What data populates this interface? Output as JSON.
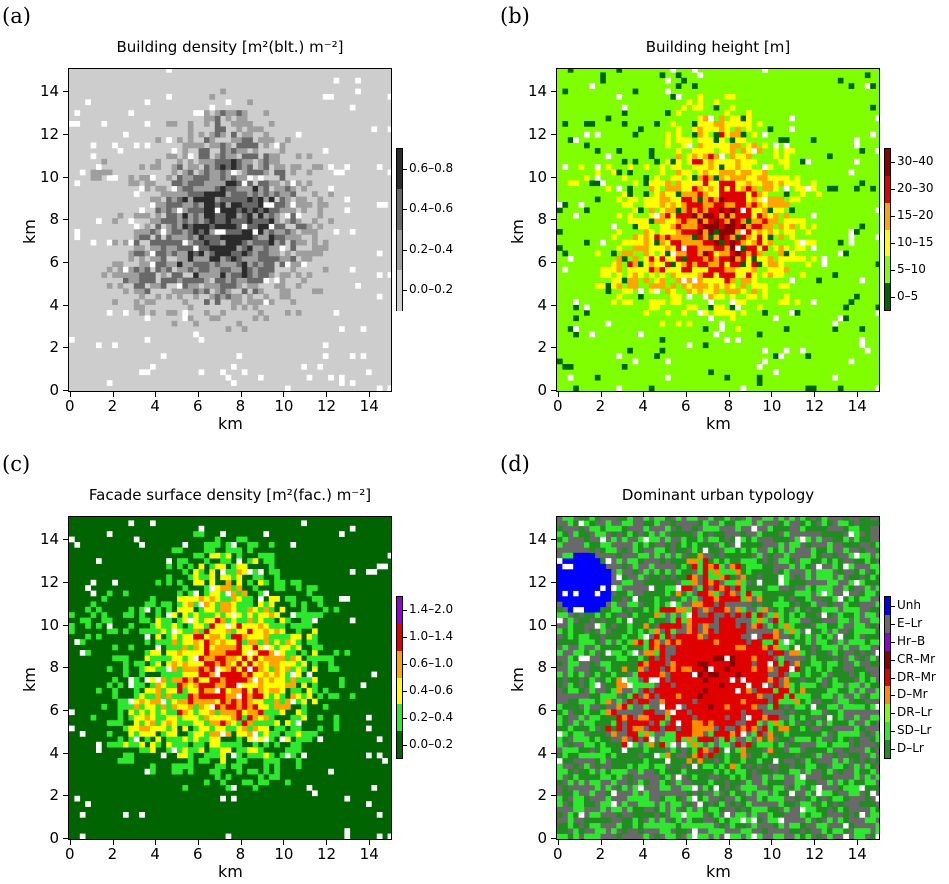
{
  "x_ticks": [
    "0",
    "2",
    "4",
    "6",
    "8",
    "10",
    "12",
    "14"
  ],
  "y_ticks": [
    "0",
    "2",
    "4",
    "6",
    "8",
    "10",
    "12",
    "14"
  ],
  "xlabel": "km",
  "ylabel": "km",
  "panels": {
    "a": {
      "letter": "(a)",
      "title": "Building density [m²(blt.) m⁻²]",
      "legend": [
        "0.6–0.8",
        "0.4–0.6",
        "0.2–0.4",
        "0.0–0.2"
      ],
      "colors": [
        "#2b2b2b",
        "#686868",
        "#9e9e9e",
        "#cdcdcd"
      ],
      "background": "#cdcdcd"
    },
    "b": {
      "letter": "(b)",
      "title": "Building height [m]",
      "legend": [
        "30–40",
        "20–30",
        "15–20",
        "10–15",
        "5–10",
        "0–5"
      ],
      "colors": [
        "#8b0000",
        "#e00000",
        "#ffa500",
        "#ffff00",
        "#7fff00",
        "#006400"
      ],
      "background": "#7fff00"
    },
    "c": {
      "letter": "(c)",
      "title": "Facade surface density [m²(fac.) m⁻²]",
      "legend": [
        "1.4–2.0",
        "1.0–1.4",
        "0.6–1.0",
        "0.4–0.6",
        "0.2–0.4",
        "0.0–0.2"
      ],
      "colors": [
        "#9400d3",
        "#e00000",
        "#ffa500",
        "#ffff00",
        "#2ee82e",
        "#006400"
      ],
      "background": "#006400"
    },
    "d": {
      "letter": "(d)",
      "title": "Dominant urban typology",
      "legend": [
        "Unh",
        "E–Lr",
        "Hr–B",
        "CR–Mr",
        "DR–Mr",
        "D–Mr",
        "DR–Lr",
        "SD–Lr",
        "D–Lr"
      ],
      "colors": [
        "#0000ff",
        "#696969",
        "#9400d3",
        "#8b0000",
        "#e00000",
        "#ff8c00",
        "#7fff00",
        "#2ee82e",
        "#228b22"
      ],
      "background": "#696969"
    }
  },
  "chart_data": [
    {
      "type": "heatmap",
      "title": "Building density [m²(blt.) m⁻²]",
      "xlabel": "km",
      "ylabel": "km",
      "xlim": [
        0,
        15
      ],
      "ylim": [
        0,
        15
      ],
      "categories": [
        "0.0–0.2",
        "0.2–0.4",
        "0.4–0.6",
        "0.6–0.8"
      ],
      "colorbar": "right",
      "highest_values_center_km": [
        7.5,
        7.5
      ]
    },
    {
      "type": "heatmap",
      "title": "Building height [m]",
      "xlabel": "km",
      "ylabel": "km",
      "xlim": [
        0,
        15
      ],
      "ylim": [
        0,
        15
      ],
      "categories": [
        "0–5",
        "5–10",
        "10–15",
        "15–20",
        "20–30",
        "30–40"
      ],
      "colorbar": "right"
    },
    {
      "type": "heatmap",
      "title": "Facade surface density [m²(fac.) m⁻²]",
      "xlabel": "km",
      "ylabel": "km",
      "xlim": [
        0,
        15
      ],
      "ylim": [
        0,
        15
      ],
      "categories": [
        "0.0–0.2",
        "0.2–0.4",
        "0.4–0.6",
        "0.6–1.0",
        "1.0–1.4",
        "1.4–2.0"
      ],
      "colorbar": "right"
    },
    {
      "type": "heatmap",
      "title": "Dominant urban typology",
      "xlabel": "km",
      "ylabel": "km",
      "xlim": [
        0,
        15
      ],
      "ylim": [
        0,
        15
      ],
      "categories": [
        "D–Lr",
        "SD–Lr",
        "DR–Lr",
        "D–Mr",
        "DR–Mr",
        "CR–Mr",
        "Hr–B",
        "E–Lr",
        "Unh"
      ],
      "colorbar": "right"
    }
  ]
}
